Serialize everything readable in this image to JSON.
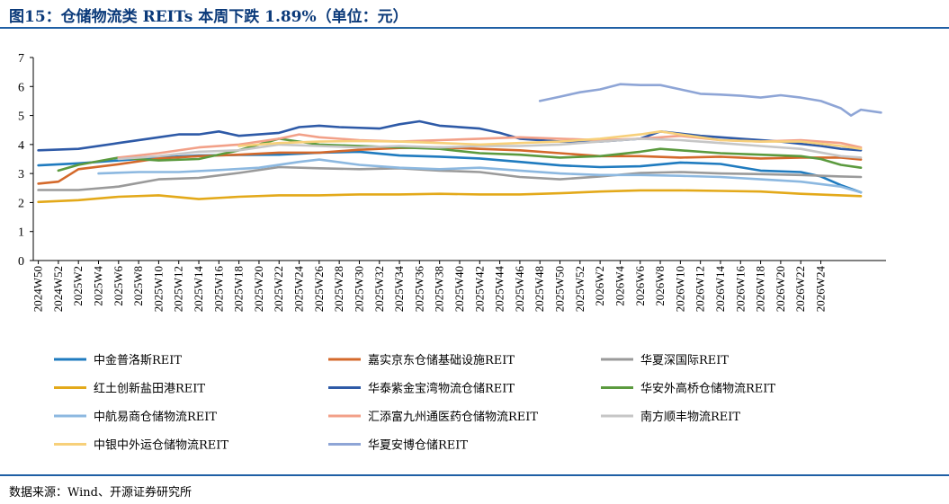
{
  "header": {
    "title": "图15：仓储物流类 REITs 本周下跌 1.89%（单位：元）"
  },
  "footer": {
    "source": "数据来源：Wind、开源证券研究所"
  },
  "chart_data": {
    "type": "line",
    "ylim": [
      0,
      7
    ],
    "yticks": [
      0,
      1,
      2,
      3,
      4,
      5,
      6,
      7
    ],
    "x_tick_labels": [
      "2024W50",
      "2024W52",
      "2025W2",
      "2025W4",
      "2025W6",
      "2025W8",
      "2025W10",
      "2025W12",
      "2025W14",
      "2025W16",
      "2025W18",
      "2025W20",
      "2025W22",
      "2025W24",
      "2025W26",
      "2025W28",
      "2025W30",
      "2025W32",
      "2025W34",
      "2025W36",
      "2025W38",
      "2025W40",
      "2025W42",
      "2025W44",
      "2025W46",
      "2025W48",
      "2025W50",
      "2025W52",
      "2026W2",
      "2026W4",
      "2026W6",
      "2026W8",
      "2026W10",
      "2026W12",
      "2026W14",
      "2026W16",
      "2026W18",
      "2026W20",
      "2026W22",
      "2026W24"
    ],
    "legend_position": "bottom",
    "series": [
      {
        "name": "中金普洛斯REIT",
        "color": "#1f7bbf",
        "points": [
          [
            0,
            3.28
          ],
          [
            4,
            3.35
          ],
          [
            8,
            3.45
          ],
          [
            12,
            3.55
          ],
          [
            16,
            3.62
          ],
          [
            20,
            3.64
          ],
          [
            24,
            3.65
          ],
          [
            28,
            3.72
          ],
          [
            32,
            3.75
          ],
          [
            36,
            3.62
          ],
          [
            40,
            3.58
          ],
          [
            44,
            3.52
          ],
          [
            48,
            3.4
          ],
          [
            52,
            3.28
          ],
          [
            56,
            3.22
          ],
          [
            60,
            3.25
          ],
          [
            64,
            3.38
          ],
          [
            68,
            3.33
          ],
          [
            72,
            3.1
          ],
          [
            76,
            3.05
          ],
          [
            78,
            2.9
          ],
          [
            80,
            2.6
          ],
          [
            82,
            2.35
          ]
        ]
      },
      {
        "name": "嘉实京东仓储基础设施REIT",
        "color": "#d4692b",
        "points": [
          [
            0,
            2.65
          ],
          [
            2,
            2.72
          ],
          [
            4,
            3.15
          ],
          [
            8,
            3.32
          ],
          [
            12,
            3.52
          ],
          [
            16,
            3.6
          ],
          [
            20,
            3.65
          ],
          [
            24,
            3.72
          ],
          [
            28,
            3.72
          ],
          [
            32,
            3.82
          ],
          [
            36,
            3.88
          ],
          [
            40,
            3.9
          ],
          [
            44,
            3.85
          ],
          [
            48,
            3.8
          ],
          [
            52,
            3.7
          ],
          [
            56,
            3.6
          ],
          [
            60,
            3.6
          ],
          [
            64,
            3.55
          ],
          [
            68,
            3.58
          ],
          [
            72,
            3.52
          ],
          [
            76,
            3.55
          ],
          [
            80,
            3.55
          ],
          [
            82,
            3.48
          ]
        ]
      },
      {
        "name": "华夏深国际REIT",
        "color": "#9a9a9a",
        "points": [
          [
            0,
            2.43
          ],
          [
            4,
            2.43
          ],
          [
            8,
            2.55
          ],
          [
            12,
            2.8
          ],
          [
            16,
            2.85
          ],
          [
            20,
            3.02
          ],
          [
            24,
            3.22
          ],
          [
            28,
            3.18
          ],
          [
            32,
            3.15
          ],
          [
            36,
            3.18
          ],
          [
            40,
            3.1
          ],
          [
            44,
            3.05
          ],
          [
            48,
            2.88
          ],
          [
            52,
            2.8
          ],
          [
            56,
            2.9
          ],
          [
            60,
            3.02
          ],
          [
            64,
            3.05
          ],
          [
            68,
            3.0
          ],
          [
            72,
            2.98
          ],
          [
            76,
            2.95
          ],
          [
            80,
            2.9
          ],
          [
            82,
            2.88
          ]
        ]
      },
      {
        "name": "红土创新盐田港REIT",
        "color": "#e3a91a",
        "points": [
          [
            0,
            2.02
          ],
          [
            4,
            2.08
          ],
          [
            8,
            2.2
          ],
          [
            12,
            2.25
          ],
          [
            16,
            2.12
          ],
          [
            20,
            2.2
          ],
          [
            24,
            2.25
          ],
          [
            28,
            2.25
          ],
          [
            32,
            2.28
          ],
          [
            36,
            2.28
          ],
          [
            40,
            2.3
          ],
          [
            44,
            2.28
          ],
          [
            48,
            2.28
          ],
          [
            52,
            2.32
          ],
          [
            56,
            2.38
          ],
          [
            60,
            2.42
          ],
          [
            64,
            2.42
          ],
          [
            68,
            2.4
          ],
          [
            72,
            2.38
          ],
          [
            76,
            2.3
          ],
          [
            80,
            2.25
          ],
          [
            82,
            2.22
          ]
        ]
      },
      {
        "name": "华泰紫金宝湾物流仓储REIT",
        "color": "#2e5aa7",
        "points": [
          [
            0,
            3.8
          ],
          [
            4,
            3.85
          ],
          [
            8,
            4.05
          ],
          [
            12,
            4.25
          ],
          [
            14,
            4.35
          ],
          [
            16,
            4.35
          ],
          [
            18,
            4.45
          ],
          [
            20,
            4.3
          ],
          [
            24,
            4.4
          ],
          [
            26,
            4.6
          ],
          [
            28,
            4.65
          ],
          [
            30,
            4.6
          ],
          [
            34,
            4.55
          ],
          [
            36,
            4.7
          ],
          [
            38,
            4.8
          ],
          [
            40,
            4.65
          ],
          [
            44,
            4.55
          ],
          [
            46,
            4.4
          ],
          [
            48,
            4.2
          ],
          [
            52,
            4.1
          ],
          [
            56,
            4.1
          ],
          [
            60,
            4.2
          ],
          [
            62,
            4.45
          ],
          [
            66,
            4.3
          ],
          [
            70,
            4.2
          ],
          [
            74,
            4.1
          ],
          [
            78,
            3.95
          ],
          [
            80,
            3.85
          ],
          [
            82,
            3.8
          ]
        ]
      },
      {
        "name": "华安外高桥仓储物流REIT",
        "color": "#5b9a3e",
        "points": [
          [
            2,
            3.1
          ],
          [
            4,
            3.3
          ],
          [
            8,
            3.55
          ],
          [
            12,
            3.45
          ],
          [
            16,
            3.5
          ],
          [
            20,
            3.8
          ],
          [
            24,
            4.2
          ],
          [
            26,
            4.1
          ],
          [
            28,
            4.0
          ],
          [
            32,
            3.95
          ],
          [
            36,
            3.9
          ],
          [
            40,
            3.85
          ],
          [
            44,
            3.7
          ],
          [
            48,
            3.65
          ],
          [
            52,
            3.55
          ],
          [
            56,
            3.6
          ],
          [
            60,
            3.75
          ],
          [
            62,
            3.85
          ],
          [
            64,
            3.8
          ],
          [
            68,
            3.7
          ],
          [
            72,
            3.65
          ],
          [
            76,
            3.6
          ],
          [
            78,
            3.5
          ],
          [
            80,
            3.3
          ],
          [
            82,
            3.2
          ]
        ]
      },
      {
        "name": "中航易商仓储物流REIT",
        "color": "#8cb8e0",
        "points": [
          [
            6,
            3.0
          ],
          [
            10,
            3.05
          ],
          [
            14,
            3.05
          ],
          [
            18,
            3.12
          ],
          [
            22,
            3.2
          ],
          [
            26,
            3.4
          ],
          [
            28,
            3.48
          ],
          [
            32,
            3.3
          ],
          [
            36,
            3.2
          ],
          [
            40,
            3.15
          ],
          [
            44,
            3.2
          ],
          [
            48,
            3.1
          ],
          [
            52,
            3.0
          ],
          [
            56,
            2.95
          ],
          [
            60,
            2.95
          ],
          [
            64,
            2.92
          ],
          [
            68,
            2.88
          ],
          [
            72,
            2.8
          ],
          [
            76,
            2.72
          ],
          [
            80,
            2.55
          ],
          [
            82,
            2.35
          ]
        ]
      },
      {
        "name": "汇添富九州通医药仓储物流REIT",
        "color": "#f2a088",
        "points": [
          [
            8,
            3.55
          ],
          [
            12,
            3.7
          ],
          [
            16,
            3.9
          ],
          [
            20,
            4.0
          ],
          [
            24,
            4.2
          ],
          [
            26,
            4.35
          ],
          [
            28,
            4.25
          ],
          [
            32,
            4.15
          ],
          [
            36,
            4.1
          ],
          [
            40,
            4.15
          ],
          [
            44,
            4.2
          ],
          [
            48,
            4.25
          ],
          [
            52,
            4.2
          ],
          [
            56,
            4.15
          ],
          [
            60,
            4.2
          ],
          [
            64,
            4.3
          ],
          [
            68,
            4.15
          ],
          [
            72,
            4.1
          ],
          [
            76,
            4.15
          ],
          [
            80,
            4.05
          ],
          [
            82,
            3.9
          ]
        ]
      },
      {
        "name": "南方顺丰物流REIT",
        "color": "#c6c6c6",
        "points": [
          [
            8,
            3.5
          ],
          [
            12,
            3.6
          ],
          [
            16,
            3.75
          ],
          [
            20,
            3.8
          ],
          [
            24,
            4.0
          ],
          [
            28,
            3.95
          ],
          [
            32,
            3.9
          ],
          [
            36,
            3.95
          ],
          [
            40,
            3.9
          ],
          [
            44,
            3.95
          ],
          [
            48,
            3.95
          ],
          [
            52,
            4.0
          ],
          [
            56,
            4.1
          ],
          [
            60,
            4.2
          ],
          [
            64,
            4.15
          ],
          [
            68,
            4.05
          ],
          [
            72,
            3.95
          ],
          [
            76,
            3.85
          ],
          [
            80,
            3.6
          ],
          [
            82,
            3.55
          ]
        ]
      },
      {
        "name": "中银中外运仓储物流REIT",
        "color": "#f7d07a",
        "points": [
          [
            20,
            3.95
          ],
          [
            24,
            4.05
          ],
          [
            28,
            4.1
          ],
          [
            32,
            4.12
          ],
          [
            36,
            4.1
          ],
          [
            40,
            4.05
          ],
          [
            44,
            4.0
          ],
          [
            48,
            4.05
          ],
          [
            52,
            4.1
          ],
          [
            56,
            4.2
          ],
          [
            60,
            4.35
          ],
          [
            62,
            4.45
          ],
          [
            64,
            4.35
          ],
          [
            68,
            4.15
          ],
          [
            72,
            4.1
          ],
          [
            76,
            4.1
          ],
          [
            80,
            3.95
          ],
          [
            82,
            3.85
          ]
        ]
      },
      {
        "name": "华夏安博仓储REIT",
        "color": "#8ea5d6",
        "points": [
          [
            50,
            5.5
          ],
          [
            52,
            5.65
          ],
          [
            54,
            5.8
          ],
          [
            56,
            5.9
          ],
          [
            58,
            6.08
          ],
          [
            60,
            6.05
          ],
          [
            62,
            6.05
          ],
          [
            64,
            5.9
          ],
          [
            66,
            5.75
          ],
          [
            68,
            5.72
          ],
          [
            70,
            5.68
          ],
          [
            72,
            5.62
          ],
          [
            74,
            5.7
          ],
          [
            76,
            5.62
          ],
          [
            78,
            5.5
          ],
          [
            80,
            5.25
          ],
          [
            81,
            5.0
          ],
          [
            82,
            5.2
          ],
          [
            84,
            5.1
          ]
        ]
      }
    ]
  }
}
